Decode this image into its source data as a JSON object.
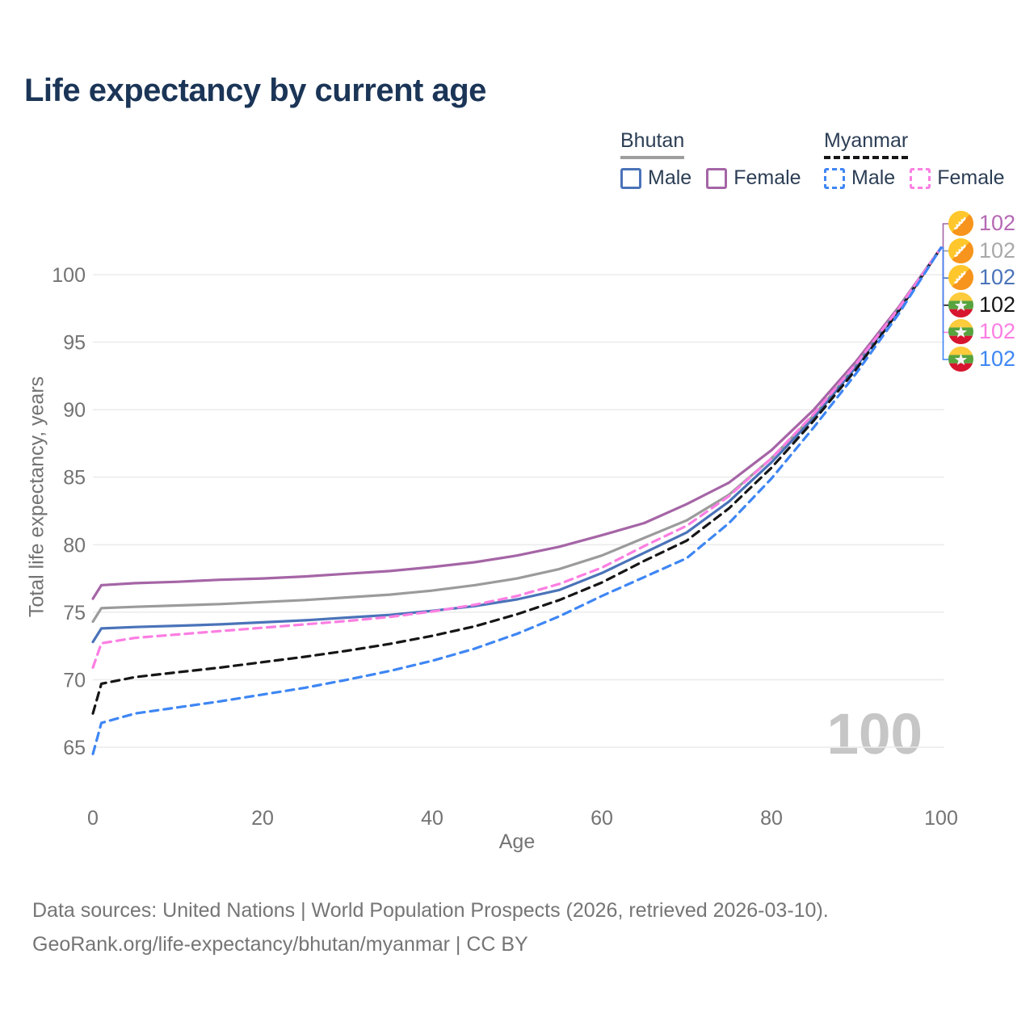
{
  "title": "Life expectancy by current age",
  "watermark": "100",
  "legend": {
    "groups": [
      {
        "name": "Bhutan",
        "line_style": "solid",
        "underline_color": "#9e9e9e",
        "items": [
          {
            "label": "Male",
            "color": "#4a73b9"
          },
          {
            "label": "Female",
            "color": "#a565a6"
          }
        ]
      },
      {
        "name": "Myanmar",
        "line_style": "dashed",
        "underline_color": "#161616",
        "items": [
          {
            "label": "Male",
            "color": "#3e86f4"
          },
          {
            "label": "Female",
            "color": "#fc7ee2"
          }
        ]
      }
    ]
  },
  "footer": {
    "line1": "Data sources: United Nations | World Population Prospects (2026, retrieved 2026-03-10).",
    "line2": "GeoRank.org/life-expectancy/bhutan/myanmar | CC BY"
  },
  "chart_data": {
    "type": "line",
    "title": "Life expectancy by current age",
    "xlabel": "Age",
    "ylabel": "Total life expectancy, years",
    "x_ticks": [
      0,
      20,
      40,
      60,
      80,
      100
    ],
    "y_ticks": [
      65,
      70,
      75,
      80,
      85,
      90,
      95,
      100
    ],
    "xlim": [
      0,
      100
    ],
    "ylim": [
      63,
      103
    ],
    "grid": "horizontal",
    "legend_position": "top-right",
    "ages": [
      0,
      1,
      5,
      10,
      15,
      20,
      25,
      30,
      35,
      40,
      45,
      50,
      55,
      60,
      65,
      70,
      75,
      80,
      85,
      90,
      95,
      100
    ],
    "series": [
      {
        "name": "Bhutan Female",
        "country": "Bhutan",
        "sex": "Female",
        "style": "solid",
        "color": "#a565a6",
        "flag": "bhutan",
        "end_label": "102",
        "end_label_color": "#b668b4",
        "values": [
          76.0,
          77.0,
          77.15,
          77.25,
          77.4,
          77.5,
          77.65,
          77.85,
          78.05,
          78.35,
          78.7,
          79.2,
          79.85,
          80.7,
          81.6,
          83.0,
          84.6,
          87.0,
          90.0,
          93.6,
          97.6,
          102
        ]
      },
      {
        "name": "Bhutan Both sexes",
        "country": "Bhutan",
        "sex": "Both",
        "style": "solid",
        "color": "#9b9b9b",
        "flag": "bhutan",
        "end_label": "102",
        "end_label_color": "#a9a9a9",
        "values": [
          74.3,
          75.3,
          75.4,
          75.5,
          75.6,
          75.75,
          75.9,
          76.1,
          76.3,
          76.6,
          77.0,
          77.5,
          78.2,
          79.2,
          80.5,
          81.8,
          83.7,
          86.4,
          89.6,
          93.3,
          97.5,
          102
        ]
      },
      {
        "name": "Bhutan Male",
        "country": "Bhutan",
        "sex": "Male",
        "style": "solid",
        "color": "#4a73b9",
        "flag": "bhutan",
        "end_label": "102",
        "end_label_color": "#4a73b9",
        "values": [
          72.8,
          73.8,
          73.9,
          74.0,
          74.1,
          74.25,
          74.4,
          74.6,
          74.8,
          75.1,
          75.45,
          75.95,
          76.65,
          77.9,
          79.4,
          80.9,
          83.2,
          86.1,
          89.4,
          93.2,
          97.4,
          102
        ]
      },
      {
        "name": "Myanmar Both sexes",
        "country": "Myanmar",
        "sex": "Both",
        "style": "dashed",
        "color": "#161616",
        "flag": "myanmar",
        "end_label": "102",
        "end_label_color": "#161616",
        "values": [
          67.5,
          69.7,
          70.2,
          70.55,
          70.9,
          71.3,
          71.7,
          72.15,
          72.65,
          73.25,
          73.95,
          74.85,
          75.9,
          77.2,
          78.8,
          80.3,
          82.7,
          85.7,
          89.2,
          93.0,
          97.3,
          102
        ]
      },
      {
        "name": "Myanmar Female",
        "country": "Myanmar",
        "sex": "Female",
        "style": "dashed",
        "color": "#fc7ee2",
        "flag": "myanmar",
        "end_label": "102",
        "end_label_color": "#fc7ee2",
        "values": [
          70.9,
          72.7,
          73.1,
          73.35,
          73.6,
          73.85,
          74.1,
          74.35,
          74.65,
          75.05,
          75.55,
          76.2,
          77.1,
          78.3,
          79.9,
          81.4,
          83.6,
          86.4,
          89.7,
          93.4,
          97.5,
          102
        ]
      },
      {
        "name": "Myanmar Male",
        "country": "Myanmar",
        "sex": "Male",
        "style": "dashed",
        "color": "#3e86f4",
        "flag": "myanmar",
        "end_label": "102",
        "end_label_color": "#3e86f4",
        "values": [
          64.5,
          66.8,
          67.5,
          67.95,
          68.4,
          68.9,
          69.4,
          70.0,
          70.65,
          71.4,
          72.3,
          73.4,
          74.7,
          76.2,
          77.6,
          79.0,
          81.6,
          84.9,
          88.7,
          92.7,
          97.1,
          102
        ]
      }
    ]
  }
}
